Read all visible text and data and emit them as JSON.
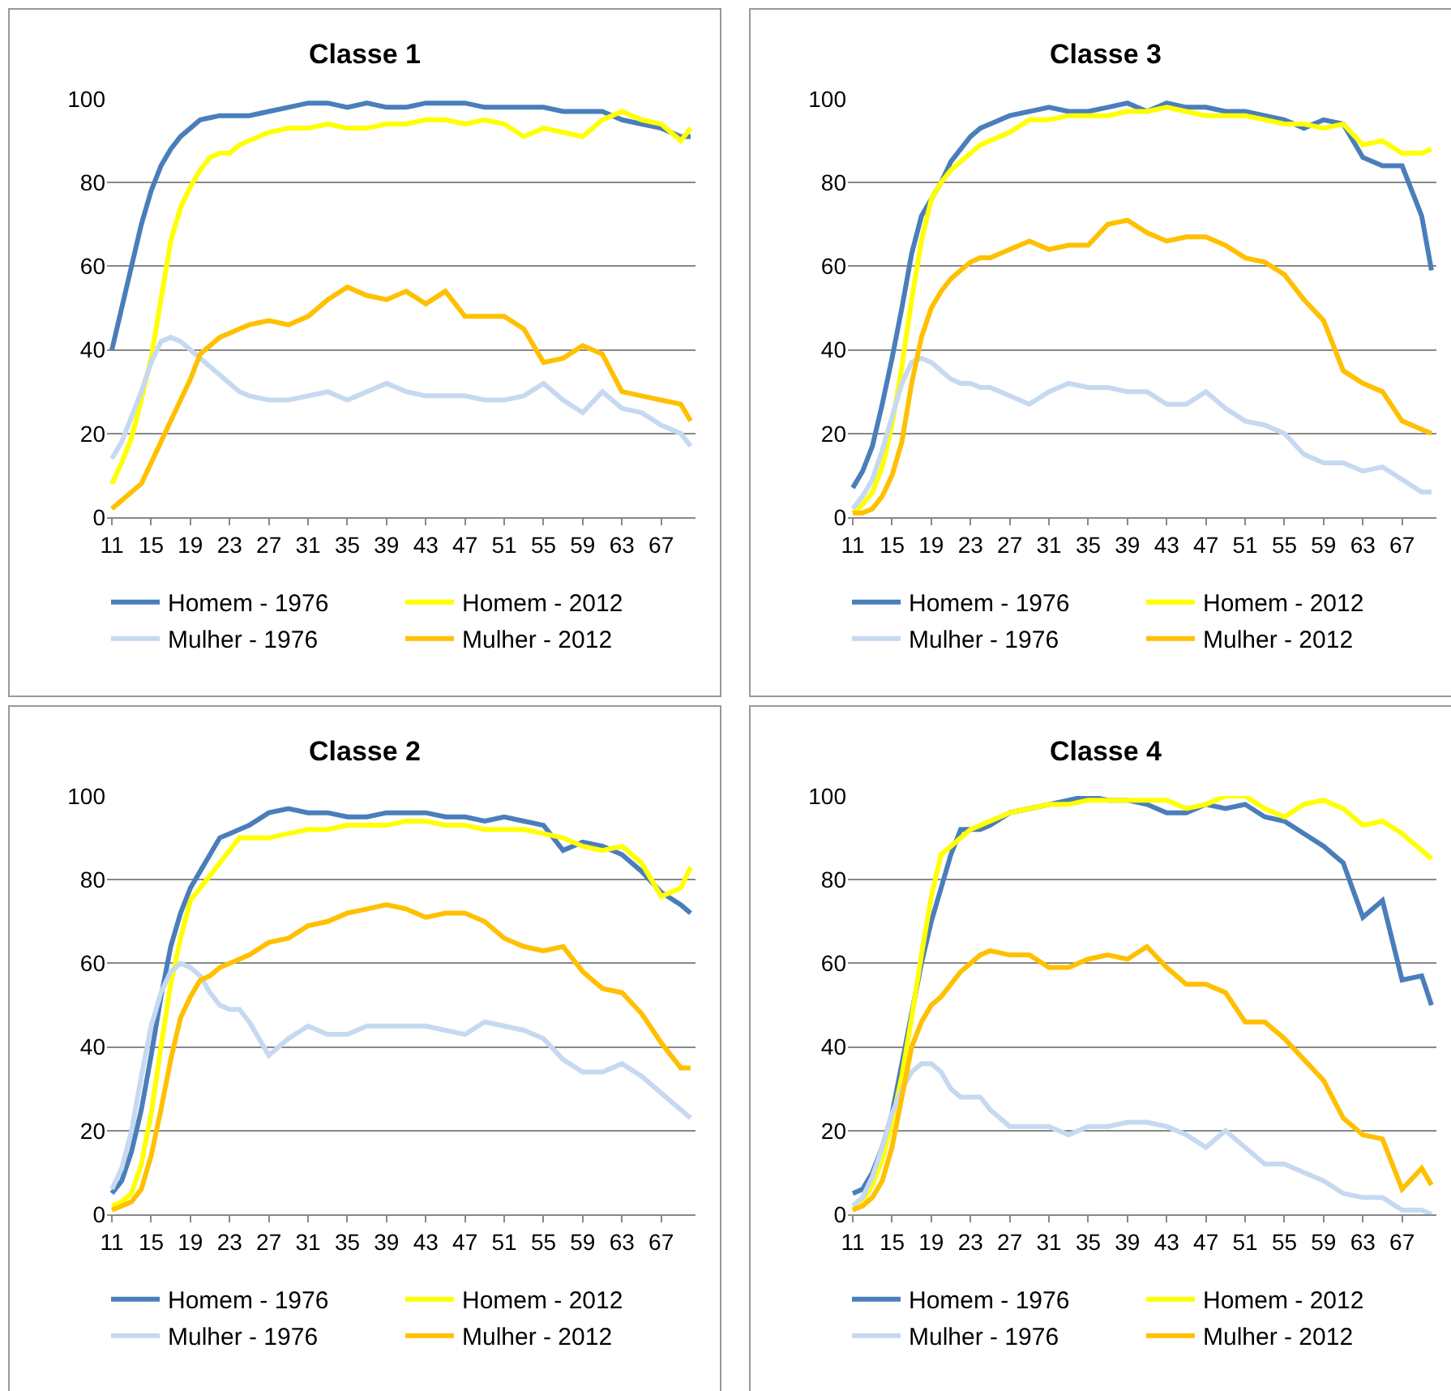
{
  "chart_data": [
    {
      "type": "line",
      "title": "Classe 1",
      "x": [
        11,
        12,
        13,
        14,
        15,
        16,
        17,
        18,
        19,
        20,
        21,
        22,
        23,
        24,
        25,
        27,
        29,
        31,
        33,
        35,
        37,
        39,
        41,
        43,
        45,
        47,
        49,
        51,
        53,
        55,
        57,
        59,
        61,
        63,
        65,
        67,
        69,
        70
      ],
      "xlim": [
        10.5,
        70.5
      ],
      "xticks": [
        11,
        15,
        19,
        23,
        27,
        31,
        35,
        39,
        43,
        47,
        51,
        55,
        59,
        63,
        67
      ],
      "ylim": [
        0,
        100
      ],
      "yticks": [
        0,
        20,
        40,
        60,
        80,
        100
      ],
      "grid": "y",
      "legend": "bottom",
      "series": [
        {
          "name": "Homem - 1976",
          "color": "#4a7ebb",
          "values": [
            40,
            50,
            60,
            70,
            78,
            84,
            88,
            91,
            93,
            95,
            95.5,
            96,
            96,
            96,
            96,
            97,
            98,
            99,
            99,
            98,
            99,
            98,
            98,
            99,
            99,
            99,
            98,
            98,
            98,
            98,
            97,
            97,
            97,
            95,
            94,
            93,
            91,
            91
          ]
        },
        {
          "name": "Homem - 2012",
          "color": "#ffff00",
          "values": [
            8,
            13,
            19,
            28,
            38,
            52,
            66,
            74,
            79,
            83,
            86,
            87,
            87,
            89,
            90,
            92,
            93,
            93,
            94,
            93,
            93,
            94,
            94,
            95,
            95,
            94,
            95,
            94,
            91,
            93,
            92,
            91,
            95,
            97,
            95,
            94,
            90,
            93
          ]
        },
        {
          "name": "Mulher - 1976",
          "color": "#c6d9f1",
          "values": [
            14,
            18,
            24,
            30,
            37,
            42,
            43,
            42,
            40,
            38,
            36,
            34,
            32,
            30,
            29,
            28,
            28,
            29,
            30,
            28,
            30,
            32,
            30,
            29,
            29,
            29,
            28,
            28,
            29,
            32,
            28,
            25,
            30,
            26,
            25,
            22,
            20,
            17
          ]
        },
        {
          "name": "Mulher - 2012",
          "color": "#ffc000",
          "values": [
            2,
            4,
            6,
            8,
            13,
            18,
            23,
            28,
            33,
            39,
            41,
            43,
            44,
            45,
            46,
            47,
            46,
            48,
            52,
            55,
            53,
            52,
            54,
            51,
            54,
            48,
            48,
            48,
            45,
            37,
            38,
            41,
            39,
            30,
            29,
            28,
            27,
            23
          ]
        }
      ]
    },
    {
      "type": "line",
      "title": "Classe 3",
      "x": [
        11,
        12,
        13,
        14,
        15,
        16,
        17,
        18,
        19,
        20,
        21,
        22,
        23,
        24,
        25,
        27,
        29,
        31,
        33,
        35,
        37,
        39,
        41,
        43,
        45,
        47,
        49,
        51,
        53,
        55,
        57,
        59,
        61,
        63,
        65,
        67,
        69,
        70
      ],
      "xlim": [
        10.5,
        70.5
      ],
      "xticks": [
        11,
        15,
        19,
        23,
        27,
        31,
        35,
        39,
        43,
        47,
        51,
        55,
        59,
        63,
        67
      ],
      "ylim": [
        0,
        100
      ],
      "yticks": [
        0,
        20,
        40,
        60,
        80,
        100
      ],
      "grid": "y",
      "legend": "bottom",
      "series": [
        {
          "name": "Homem - 1976",
          "color": "#4a7ebb",
          "values": [
            7,
            11,
            17,
            27,
            38,
            50,
            63,
            72,
            76,
            80,
            85,
            88,
            91,
            93,
            94,
            96,
            97,
            98,
            97,
            97,
            98,
            99,
            97,
            99,
            98,
            98,
            97,
            97,
            96,
            95,
            93,
            95,
            94,
            86,
            84,
            84,
            72,
            59
          ]
        },
        {
          "name": "Homem - 2012",
          "color": "#ffff00",
          "values": [
            1,
            3,
            6,
            12,
            22,
            36,
            52,
            66,
            76,
            80,
            83,
            85,
            87,
            89,
            90,
            92,
            95,
            95,
            96,
            96,
            96,
            97,
            97,
            98,
            97,
            96,
            96,
            96,
            95,
            94,
            94,
            93,
            94,
            89,
            90,
            87,
            87,
            88
          ]
        },
        {
          "name": "Mulher - 1976",
          "color": "#c6d9f1",
          "values": [
            2,
            5,
            9,
            16,
            24,
            32,
            37,
            38,
            37,
            35,
            33,
            32,
            32,
            31,
            31,
            29,
            27,
            30,
            32,
            31,
            31,
            30,
            30,
            27,
            27,
            30,
            26,
            23,
            22,
            20,
            15,
            13,
            13,
            11,
            12,
            9,
            6,
            6
          ]
        },
        {
          "name": "Mulher - 2012",
          "color": "#ffc000",
          "values": [
            1,
            1,
            2,
            5,
            10,
            18,
            32,
            43,
            50,
            54,
            57,
            59,
            61,
            62,
            62,
            64,
            66,
            64,
            65,
            65,
            70,
            71,
            68,
            66,
            67,
            67,
            65,
            62,
            61,
            58,
            52,
            47,
            35,
            32,
            30,
            23,
            21,
            20
          ]
        }
      ]
    },
    {
      "type": "line",
      "title": "Classe 2",
      "x": [
        11,
        12,
        13,
        14,
        15,
        16,
        17,
        18,
        19,
        20,
        21,
        22,
        23,
        24,
        25,
        27,
        29,
        31,
        33,
        35,
        37,
        39,
        41,
        43,
        45,
        47,
        49,
        51,
        53,
        55,
        57,
        59,
        61,
        63,
        65,
        67,
        69,
        70
      ],
      "xlim": [
        10.5,
        70.5
      ],
      "xticks": [
        11,
        15,
        19,
        23,
        27,
        31,
        35,
        39,
        43,
        47,
        51,
        55,
        59,
        63,
        67
      ],
      "ylim": [
        0,
        100
      ],
      "yticks": [
        0,
        20,
        40,
        60,
        80,
        100
      ],
      "grid": "y",
      "legend": "bottom",
      "series": [
        {
          "name": "Homem - 1976",
          "color": "#4a7ebb",
          "values": [
            5,
            8,
            15,
            25,
            38,
            52,
            64,
            72,
            78,
            82,
            86,
            90,
            91,
            92,
            93,
            96,
            97,
            96,
            96,
            95,
            95,
            96,
            96,
            96,
            95,
            95,
            94,
            95,
            94,
            93,
            87,
            89,
            88,
            86,
            82,
            77,
            74,
            72
          ]
        },
        {
          "name": "Homem - 2012",
          "color": "#ffff00",
          "values": [
            2,
            3,
            5,
            12,
            24,
            40,
            55,
            66,
            75,
            78,
            81,
            84,
            87,
            90,
            90,
            90,
            91,
            92,
            92,
            93,
            93,
            93,
            94,
            94,
            93,
            93,
            92,
            92,
            92,
            91,
            90,
            88,
            87,
            88,
            84,
            76,
            78,
            83
          ]
        },
        {
          "name": "Mulher - 1976",
          "color": "#c6d9f1",
          "values": [
            6,
            11,
            20,
            33,
            45,
            53,
            58,
            60,
            59,
            57,
            53,
            50,
            49,
            49,
            46,
            38,
            42,
            45,
            43,
            43,
            45,
            45,
            45,
            45,
            44,
            43,
            46,
            45,
            44,
            42,
            37,
            34,
            34,
            36,
            33,
            29,
            25,
            23
          ]
        },
        {
          "name": "Mulher - 2012",
          "color": "#ffc000",
          "values": [
            1,
            2,
            3,
            6,
            14,
            25,
            37,
            47,
            52,
            56,
            57,
            59,
            60,
            61,
            62,
            65,
            66,
            69,
            70,
            72,
            73,
            74,
            73,
            71,
            72,
            72,
            70,
            66,
            64,
            63,
            64,
            58,
            54,
            53,
            48,
            41,
            35,
            35
          ]
        }
      ]
    },
    {
      "type": "line",
      "title": "Classe 4",
      "x": [
        11,
        12,
        13,
        14,
        15,
        16,
        17,
        18,
        19,
        20,
        21,
        22,
        23,
        24,
        25,
        27,
        29,
        31,
        33,
        35,
        37,
        39,
        41,
        43,
        45,
        47,
        49,
        51,
        53,
        55,
        57,
        59,
        61,
        63,
        65,
        67,
        69,
        70
      ],
      "xlim": [
        10.5,
        70.5
      ],
      "xticks": [
        11,
        15,
        19,
        23,
        27,
        31,
        35,
        39,
        43,
        47,
        51,
        55,
        59,
        63,
        67
      ],
      "ylim": [
        0,
        100
      ],
      "yticks": [
        0,
        20,
        40,
        60,
        80,
        100
      ],
      "grid": "y",
      "legend": "bottom",
      "series": [
        {
          "name": "Homem - 1976",
          "color": "#4a7ebb",
          "values": [
            5,
            6,
            10,
            16,
            24,
            36,
            48,
            60,
            70,
            78,
            86,
            92,
            92,
            92,
            93,
            96,
            97,
            98,
            99,
            100,
            99,
            99,
            98,
            96,
            96,
            98,
            97,
            98,
            95,
            94,
            91,
            88,
            84,
            71,
            75,
            56,
            57,
            50
          ]
        },
        {
          "name": "Homem - 2012",
          "color": "#ffff00",
          "values": [
            1,
            3,
            7,
            13,
            22,
            33,
            47,
            62,
            76,
            86,
            88,
            90,
            92,
            93,
            94,
            96,
            97,
            98,
            98,
            99,
            99,
            99,
            99,
            99,
            97,
            98,
            100,
            100,
            97,
            95,
            98,
            99,
            97,
            93,
            94,
            91,
            87,
            85
          ]
        },
        {
          "name": "Mulher - 1976",
          "color": "#c6d9f1",
          "values": [
            2,
            4,
            9,
            16,
            24,
            30,
            34,
            36,
            36,
            34,
            30,
            28,
            28,
            28,
            25,
            21,
            21,
            21,
            19,
            21,
            21,
            22,
            22,
            21,
            19,
            16,
            20,
            16,
            12,
            12,
            10,
            8,
            5,
            4,
            4,
            1,
            1,
            0
          ]
        },
        {
          "name": "Mulher - 2012",
          "color": "#ffc000",
          "values": [
            1,
            2,
            4,
            8,
            16,
            28,
            40,
            46,
            50,
            52,
            55,
            58,
            60,
            62,
            63,
            62,
            62,
            59,
            59,
            61,
            62,
            61,
            64,
            59,
            55,
            55,
            53,
            46,
            46,
            42,
            37,
            32,
            23,
            19,
            18,
            6,
            11,
            7
          ]
        }
      ]
    }
  ]
}
